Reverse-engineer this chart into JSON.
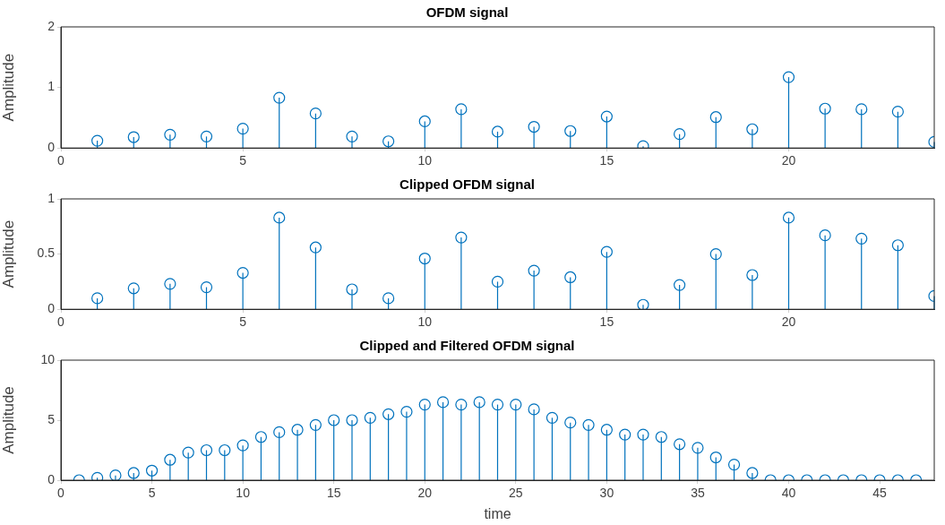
{
  "chart_data": [
    {
      "type": "lollipop",
      "title": "OFDM signal",
      "ylabel": "Amplitude",
      "color": "#0072bd",
      "marker": "circle",
      "grid": false,
      "x": [
        1,
        2,
        3,
        4,
        5,
        6,
        7,
        8,
        9,
        10,
        11,
        12,
        13,
        14,
        15,
        16,
        17,
        18,
        19,
        20,
        21,
        22,
        23,
        24
      ],
      "values": [
        0.12,
        0.18,
        0.22,
        0.19,
        0.32,
        0.83,
        0.57,
        0.19,
        0.11,
        0.44,
        0.64,
        0.27,
        0.35,
        0.28,
        0.52,
        0.03,
        0.23,
        0.51,
        0.31,
        1.17,
        0.65,
        0.64,
        0.6,
        0.1
      ],
      "xlim": [
        0,
        24
      ],
      "xticks": [
        0,
        5,
        10,
        15,
        20
      ],
      "ylim": [
        0,
        2
      ],
      "yticks": [
        0,
        1,
        2
      ]
    },
    {
      "type": "lollipop",
      "title": "Clipped OFDM signal",
      "ylabel": "Amplitude",
      "color": "#0072bd",
      "marker": "circle",
      "grid": false,
      "x": [
        1,
        2,
        3,
        4,
        5,
        6,
        7,
        8,
        9,
        10,
        11,
        12,
        13,
        14,
        15,
        16,
        17,
        18,
        19,
        20,
        21,
        22,
        23,
        24
      ],
      "values": [
        0.1,
        0.19,
        0.23,
        0.2,
        0.33,
        0.83,
        0.56,
        0.18,
        0.1,
        0.46,
        0.65,
        0.25,
        0.35,
        0.29,
        0.52,
        0.04,
        0.22,
        0.5,
        0.31,
        0.83,
        0.67,
        0.64,
        0.58,
        0.12
      ],
      "xlim": [
        0,
        24
      ],
      "xticks": [
        0,
        5,
        10,
        15,
        20
      ],
      "ylim": [
        0,
        1
      ],
      "yticks": [
        0,
        0.5,
        1
      ]
    },
    {
      "type": "lollipop",
      "title": "Clipped and Filtered OFDM signal",
      "xlabel": "time",
      "ylabel": "Amplitude",
      "color": "#0072bd",
      "marker": "circle",
      "grid": false,
      "x": [
        1,
        2,
        3,
        4,
        5,
        6,
        7,
        8,
        9,
        10,
        11,
        12,
        13,
        14,
        15,
        16,
        17,
        18,
        19,
        20,
        21,
        22,
        23,
        24,
        25,
        26,
        27,
        28,
        29,
        30,
        31,
        32,
        33,
        34,
        35,
        36,
        37,
        38,
        39,
        40,
        41,
        42,
        43,
        44,
        45,
        46,
        47
      ],
      "values": [
        0,
        0.2,
        0.4,
        0.6,
        0.8,
        1.7,
        2.3,
        2.5,
        2.5,
        2.9,
        3.6,
        4,
        4.2,
        4.6,
        5,
        5,
        5.2,
        5.5,
        5.7,
        6.3,
        6.5,
        6.3,
        6.5,
        6.3,
        6.3,
        5.9,
        5.2,
        4.8,
        4.6,
        4.2,
        3.8,
        3.8,
        3.6,
        3,
        2.7,
        1.9,
        1.3,
        0.6,
        0,
        0,
        0,
        0,
        0,
        0,
        0,
        0,
        0
      ],
      "xlim": [
        0,
        48
      ],
      "xticks": [
        0,
        5,
        10,
        15,
        20,
        25,
        30,
        35,
        40,
        45
      ],
      "ylim": [
        0,
        10
      ],
      "yticks": [
        0,
        5,
        10
      ]
    }
  ]
}
